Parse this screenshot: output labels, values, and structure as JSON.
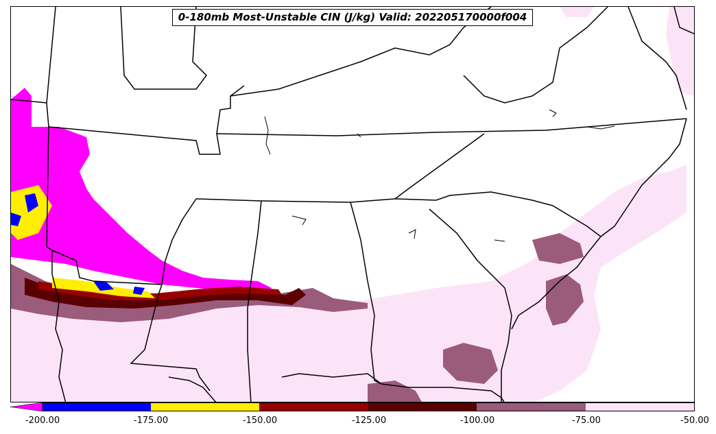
{
  "title": "0-180mb Most-Unstable CIN (J/kg) Valid: 202205170000f004",
  "colorbar": {
    "ticks": [
      "-200.00",
      "-175.00",
      "-150.00",
      "-125.00",
      "-100.00",
      "-75.00",
      "-50.00"
    ],
    "levels": [
      -200,
      -175,
      -150,
      -125,
      -100,
      -75,
      -50
    ],
    "bins": [
      {
        "range": "< -200",
        "color": "#ff00ff"
      },
      {
        "range": "-200 to -175",
        "color": "#0000ff"
      },
      {
        "range": "-175 to -150",
        "color": "#ffee00"
      },
      {
        "range": "-150 to -125",
        "color": "#990000"
      },
      {
        "range": "-125 to -100",
        "color": "#5a0000"
      },
      {
        "range": "-100 to -75",
        "color": "#9b5b7b"
      },
      {
        "range": "-75 to -50",
        "color": "#fce4f8"
      }
    ],
    "extend": "min"
  },
  "map": {
    "region": "Southeastern United States",
    "features": [
      "state-borders",
      "coastlines",
      "lakes",
      "rivers"
    ]
  }
}
